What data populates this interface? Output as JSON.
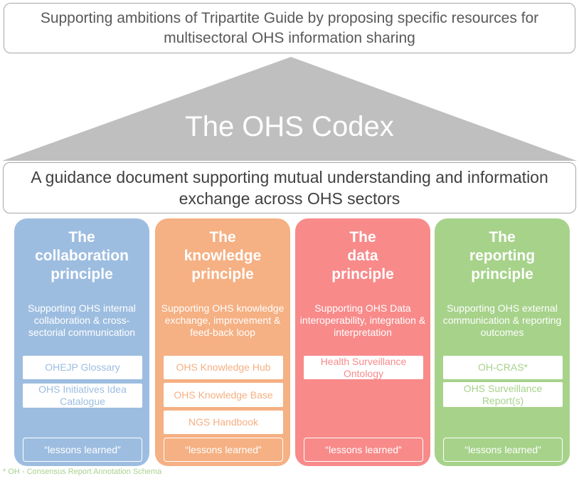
{
  "header": {
    "top_text": "Supporting ambitions of Tripartite Guide by proposing specific resources for multisectoral OHS information sharing",
    "codex_title": "The OHS Codex",
    "guidance_text": "A guidance document supporting mutual understanding and information exchange across OHS sectors"
  },
  "colors": {
    "roof": "#bfbfbf",
    "collaboration": "#9dbde0",
    "knowledge": "#f5b083",
    "data": "#f88a8a",
    "reporting": "#a6d28a"
  },
  "pillars": [
    {
      "title_line1": "The",
      "title_line2": "collaboration",
      "title_line3": "principle",
      "description": "Supporting OHS internal collaboration & cross-sectorial communication",
      "resources": [
        "OHEJP Glossary",
        "OHS Initiatives Idea Catalogue"
      ],
      "lessons": "“lessons learned”"
    },
    {
      "title_line1": "The",
      "title_line2": "knowledge",
      "title_line3": "principle",
      "description": "Supporting OHS knowledge exchange, improvement & feed-back loop",
      "resources": [
        "OHS Knowledge Hub",
        "OHS Knowledge Base",
        "NGS Handbook"
      ],
      "lessons": "“lessons learned”"
    },
    {
      "title_line1": "The",
      "title_line2": "data",
      "title_line3": "principle",
      "description": "Supporting OHS Data interoperability, integration & interpretation",
      "resources": [
        "Health Surveillance Ontology"
      ],
      "lessons": "“lessons learned”"
    },
    {
      "title_line1": "The",
      "title_line2": "reporting",
      "title_line3": "principle",
      "description": "Supporting OHS external communication & reporting outcomes",
      "resources": [
        "OH-CRAS*",
        "OHS Surveillance Report(s)"
      ],
      "lessons": "“lessons learned”"
    }
  ],
  "footnote": "* OH - Consensus Report Annotation Schema"
}
